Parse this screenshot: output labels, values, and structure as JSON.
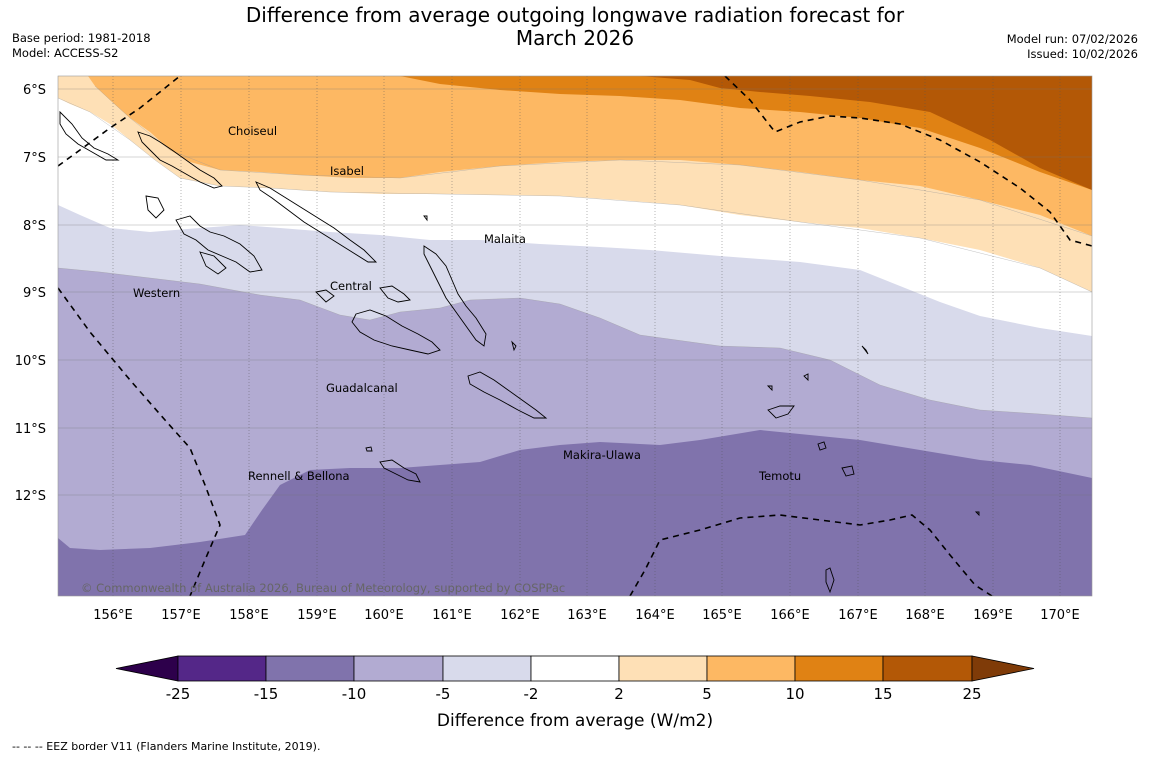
{
  "title": {
    "line1": "Difference from average outgoing longwave radiation forecast for",
    "line2": "March 2026"
  },
  "meta": {
    "base_period": "Base period: 1981-2018",
    "model": "Model: ACCESS-S2",
    "model_run": "Model run: 07/02/2026",
    "issued": "Issued: 10/02/2026"
  },
  "map": {
    "lat_labels": [
      "6°S",
      "7°S",
      "8°S",
      "9°S",
      "10°S",
      "11°S",
      "12°S"
    ],
    "lon_labels": [
      "156°E",
      "157°E",
      "158°E",
      "159°E",
      "160°E",
      "161°E",
      "162°E",
      "163°E",
      "164°E",
      "165°E",
      "166°E",
      "167°E",
      "168°E",
      "169°E",
      "170°E"
    ],
    "places": {
      "choiseul": "Choiseul",
      "isabel": "Isabel",
      "malaita": "Malaita",
      "western": "Western",
      "central": "Central",
      "guadalcanal": "Guadalcanal",
      "rennell": "Rennell & Bellona",
      "makira": "Makira-Ulawa",
      "temotu": "Temotu"
    },
    "copyright": "© Commonwealth of Australia 2026, Bureau of Meteorology, supported by COSPPac"
  },
  "colorbar": {
    "ticks": [
      "-25",
      "-15",
      "-10",
      "-5",
      "-2",
      "2",
      "5",
      "10",
      "15",
      "25"
    ],
    "colors": [
      "#2d004b",
      "#542788",
      "#8073ac",
      "#b2abd2",
      "#d8daeb",
      "#ffffff",
      "#fee0b6",
      "#fdb863",
      "#e08214",
      "#b35806",
      "#7f3b08"
    ],
    "label": "Difference from average (W/m2)"
  },
  "footnote": "--  --  -- EEZ border V11 (Flanders Marine Institute, 2019)."
}
